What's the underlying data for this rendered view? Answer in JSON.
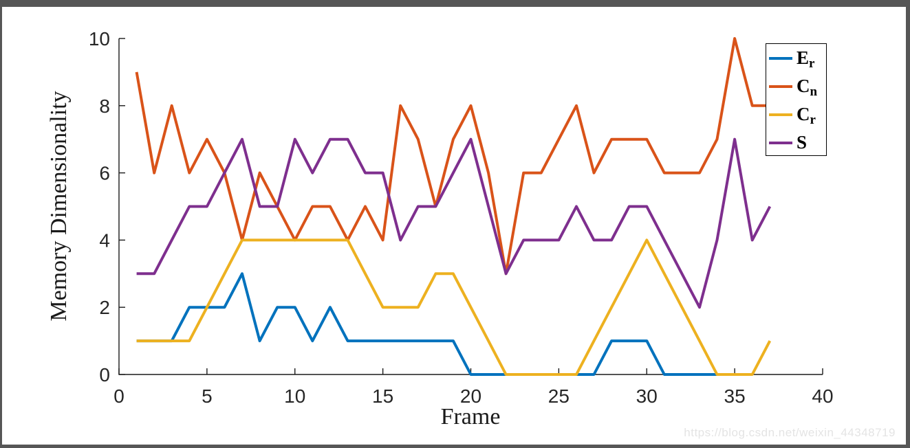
{
  "window": {
    "frame_color": "#565656",
    "canvas_color": "#ffffff"
  },
  "watermark": {
    "text": "https://blog.csdn.net/weixin_44348719",
    "color": "#e4e4e4"
  },
  "axes": {
    "line_color": "#1a1a1a",
    "tick_label_color": "#262626"
  },
  "chart_data": {
    "type": "line",
    "title": "",
    "xlabel": "Frame",
    "ylabel": "Memory Dimensionality",
    "xlim": [
      0,
      40
    ],
    "ylim": [
      0,
      10
    ],
    "x_ticks": [
      0,
      5,
      10,
      15,
      20,
      25,
      30,
      35,
      40
    ],
    "y_ticks": [
      0,
      2,
      4,
      6,
      8,
      10
    ],
    "grid": false,
    "legend_position": "northeast",
    "x_start": 1,
    "series": [
      {
        "name": "E_r",
        "label_main": "E",
        "label_sub": "r",
        "color": "#0072BD",
        "values": [
          1,
          1,
          1,
          2,
          2,
          2,
          3,
          1,
          2,
          2,
          1,
          2,
          1,
          1,
          1,
          1,
          1,
          1,
          1,
          0,
          0,
          0,
          0,
          0,
          0,
          0,
          0,
          1,
          1,
          1,
          0,
          0,
          0,
          0,
          0,
          0
        ]
      },
      {
        "name": "C_n",
        "label_main": "C",
        "label_sub": "n",
        "color": "#D95319",
        "values": [
          9,
          6,
          8,
          6,
          7,
          6,
          4,
          6,
          5,
          4,
          5,
          5,
          4,
          5,
          4,
          8,
          7,
          5,
          7,
          8,
          6,
          3,
          6,
          6,
          7,
          8,
          6,
          7,
          7,
          7,
          6,
          6,
          6,
          7,
          10,
          8,
          8
        ]
      },
      {
        "name": "C_r",
        "label_main": "C",
        "label_sub": "r",
        "color": "#EDB120",
        "values": [
          1,
          1,
          1,
          1,
          2,
          3,
          4,
          4,
          4,
          4,
          4,
          4,
          4,
          3,
          2,
          2,
          2,
          3,
          3,
          2,
          1,
          0,
          0,
          0,
          0,
          0,
          1,
          2,
          3,
          4,
          3,
          2,
          1,
          0,
          0,
          0,
          1
        ]
      },
      {
        "name": "S",
        "label_main": "S",
        "label_sub": "",
        "color": "#7E2F8E",
        "values": [
          3,
          3,
          4,
          5,
          5,
          6,
          7,
          5,
          5,
          7,
          6,
          7,
          7,
          6,
          6,
          4,
          5,
          5,
          6,
          7,
          5,
          3,
          4,
          4,
          4,
          5,
          4,
          4,
          5,
          5,
          4,
          3,
          2,
          4,
          7,
          4,
          5
        ]
      }
    ]
  }
}
